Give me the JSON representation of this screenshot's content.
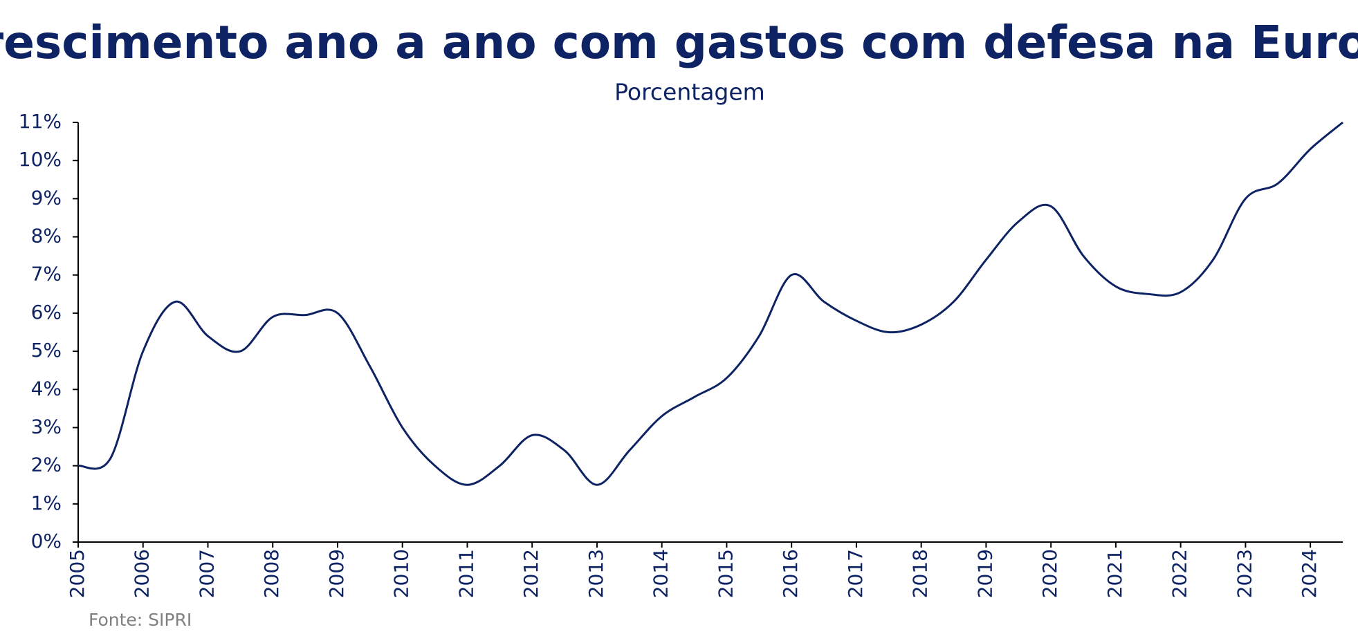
{
  "chart_data": {
    "type": "line",
    "title": "Crescimento ano a ano com gastos com defesa na Europa",
    "subtitle": "Porcentagem",
    "source": "Fonte: SIPRI",
    "x": [
      2005,
      2005.5,
      2006,
      2006.5,
      2007,
      2007.5,
      2008,
      2008.5,
      2009,
      2009.5,
      2010,
      2010.5,
      2011,
      2011.5,
      2012,
      2012.5,
      2013,
      2013.5,
      2014,
      2014.5,
      2015,
      2015.5,
      2016,
      2016.5,
      2017,
      2017.5,
      2018,
      2018.5,
      2019,
      2019.5,
      2020,
      2020.5,
      2021,
      2021.5,
      2022,
      2022.5,
      2023,
      2023.5,
      2024,
      2024.5
    ],
    "series": [
      {
        "name": "Crescimento",
        "color": "#0e2363",
        "values": [
          2.0,
          2.2,
          5.0,
          6.3,
          5.4,
          5.0,
          5.9,
          5.95,
          6.0,
          4.6,
          3.0,
          2.0,
          1.5,
          2.0,
          2.8,
          2.4,
          1.5,
          2.4,
          3.3,
          3.8,
          4.3,
          5.4,
          7.0,
          6.3,
          5.8,
          5.5,
          5.7,
          6.3,
          7.4,
          8.4,
          8.8,
          7.5,
          6.7,
          6.5,
          6.55,
          7.4,
          9.0,
          9.4,
          10.3,
          11.0
        ]
      }
    ],
    "xlim": [
      2005,
      2024.5
    ],
    "xticks": [
      2005,
      2006,
      2007,
      2008,
      2009,
      2010,
      2011,
      2012,
      2013,
      2014,
      2015,
      2016,
      2017,
      2018,
      2019,
      2020,
      2021,
      2022,
      2023,
      2024
    ],
    "ylim": [
      0,
      11
    ],
    "yticks": [
      {
        "value": 0,
        "label": "0%"
      },
      {
        "value": 1,
        "label": "1%"
      },
      {
        "value": 2,
        "label": "2%"
      },
      {
        "value": 3,
        "label": "3%"
      },
      {
        "value": 4,
        "label": "4%"
      },
      {
        "value": 5,
        "label": "5%"
      },
      {
        "value": 6,
        "label": "6%"
      },
      {
        "value": 7,
        "label": "7%"
      },
      {
        "value": 8,
        "label": "8%"
      },
      {
        "value": 9,
        "label": "9%"
      },
      {
        "value": 10,
        "label": "10%"
      },
      {
        "value": 11,
        "label": "11%"
      }
    ],
    "grid": false
  }
}
